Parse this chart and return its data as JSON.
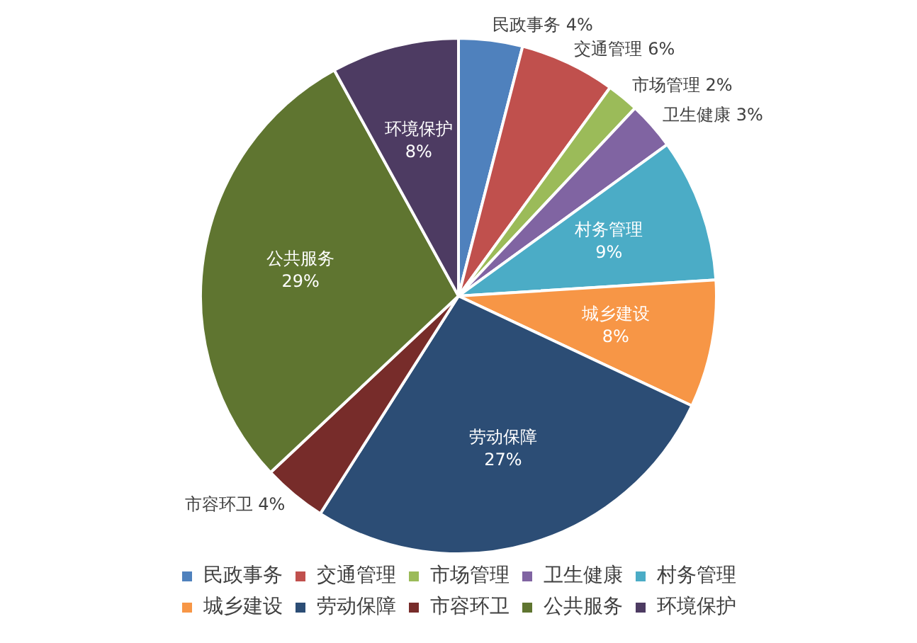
{
  "chart_data": {
    "type": "pie",
    "categories": [
      "民政事务",
      "交通管理",
      "市场管理",
      "卫生健康",
      "村务管理",
      "城乡建设",
      "劳动保障",
      "市容环卫",
      "公共服务",
      "环境保护"
    ],
    "values": [
      4,
      6,
      2,
      3,
      9,
      8,
      27,
      4,
      29,
      8
    ],
    "value_labels": [
      "4%",
      "6%",
      "2%",
      "3%",
      "9%",
      "8%",
      "27%",
      "4%",
      "29%",
      "8%"
    ],
    "colors": [
      "#4f81bd",
      "#c0504d",
      "#9bbb59",
      "#8064a2",
      "#4bacc6",
      "#f79646",
      "#2c4d75",
      "#772c2a",
      "#5f7530",
      "#4d3b62"
    ],
    "legend": "bottom"
  }
}
